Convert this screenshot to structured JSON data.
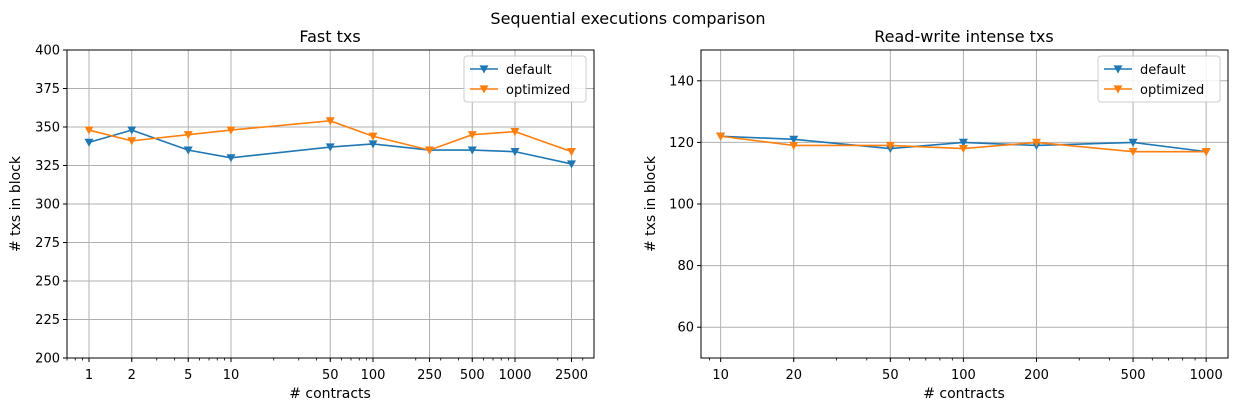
{
  "figure": {
    "suptitle": "Sequential executions comparison"
  },
  "chart_data": [
    {
      "type": "line",
      "title": "Fast txs",
      "xlabel": "# contracts",
      "ylabel": "# txs in block",
      "xscale": "log",
      "xlim": [
        0.7,
        3600
      ],
      "ylim": [
        200,
        400
      ],
      "x": [
        1,
        2,
        5,
        10,
        50,
        100,
        250,
        500,
        1000,
        2500
      ],
      "xticks": [
        1,
        2,
        5,
        10,
        50,
        100,
        250,
        500,
        1000,
        2500
      ],
      "xtick_labels": [
        "1",
        "2",
        "5",
        "10",
        "50",
        "100",
        "250",
        "500",
        "1000",
        "2500"
      ],
      "yticks": [
        200,
        225,
        250,
        275,
        300,
        325,
        350,
        375,
        400
      ],
      "ytick_labels": [
        "200",
        "225",
        "250",
        "275",
        "300",
        "325",
        "350",
        "375",
        "400"
      ],
      "grid": true,
      "legend_position": "top-right",
      "series": [
        {
          "name": "default",
          "color": "#1f77b4",
          "marker": "triangle-down",
          "values": [
            340,
            348,
            335,
            330,
            337,
            339,
            335,
            335,
            334,
            326
          ]
        },
        {
          "name": "optimized",
          "color": "#ff7f0e",
          "marker": "triangle-down",
          "values": [
            348,
            341,
            345,
            348,
            354,
            344,
            335,
            345,
            347,
            334
          ]
        }
      ]
    },
    {
      "type": "line",
      "title": "Read-write intense txs",
      "xlabel": "# contracts",
      "ylabel": "# txs in block",
      "xscale": "log",
      "xlim": [
        8.3,
        1230
      ],
      "ylim": [
        50,
        150
      ],
      "x": [
        10,
        20,
        50,
        100,
        200,
        500,
        1000
      ],
      "xticks": [
        10,
        20,
        50,
        100,
        200,
        500,
        1000
      ],
      "xtick_labels": [
        "10",
        "20",
        "50",
        "100",
        "200",
        "500",
        "1000"
      ],
      "yticks": [
        60,
        80,
        100,
        120,
        140
      ],
      "ytick_labels": [
        "60",
        "80",
        "100",
        "120",
        "140"
      ],
      "grid": true,
      "legend_position": "top-right",
      "series": [
        {
          "name": "default",
          "color": "#1f77b4",
          "marker": "triangle-down",
          "values": [
            122,
            121,
            118,
            120,
            119,
            120,
            117
          ]
        },
        {
          "name": "optimized",
          "color": "#ff7f0e",
          "marker": "triangle-down",
          "values": [
            122,
            119,
            119,
            118,
            120,
            117,
            117
          ]
        }
      ]
    }
  ]
}
